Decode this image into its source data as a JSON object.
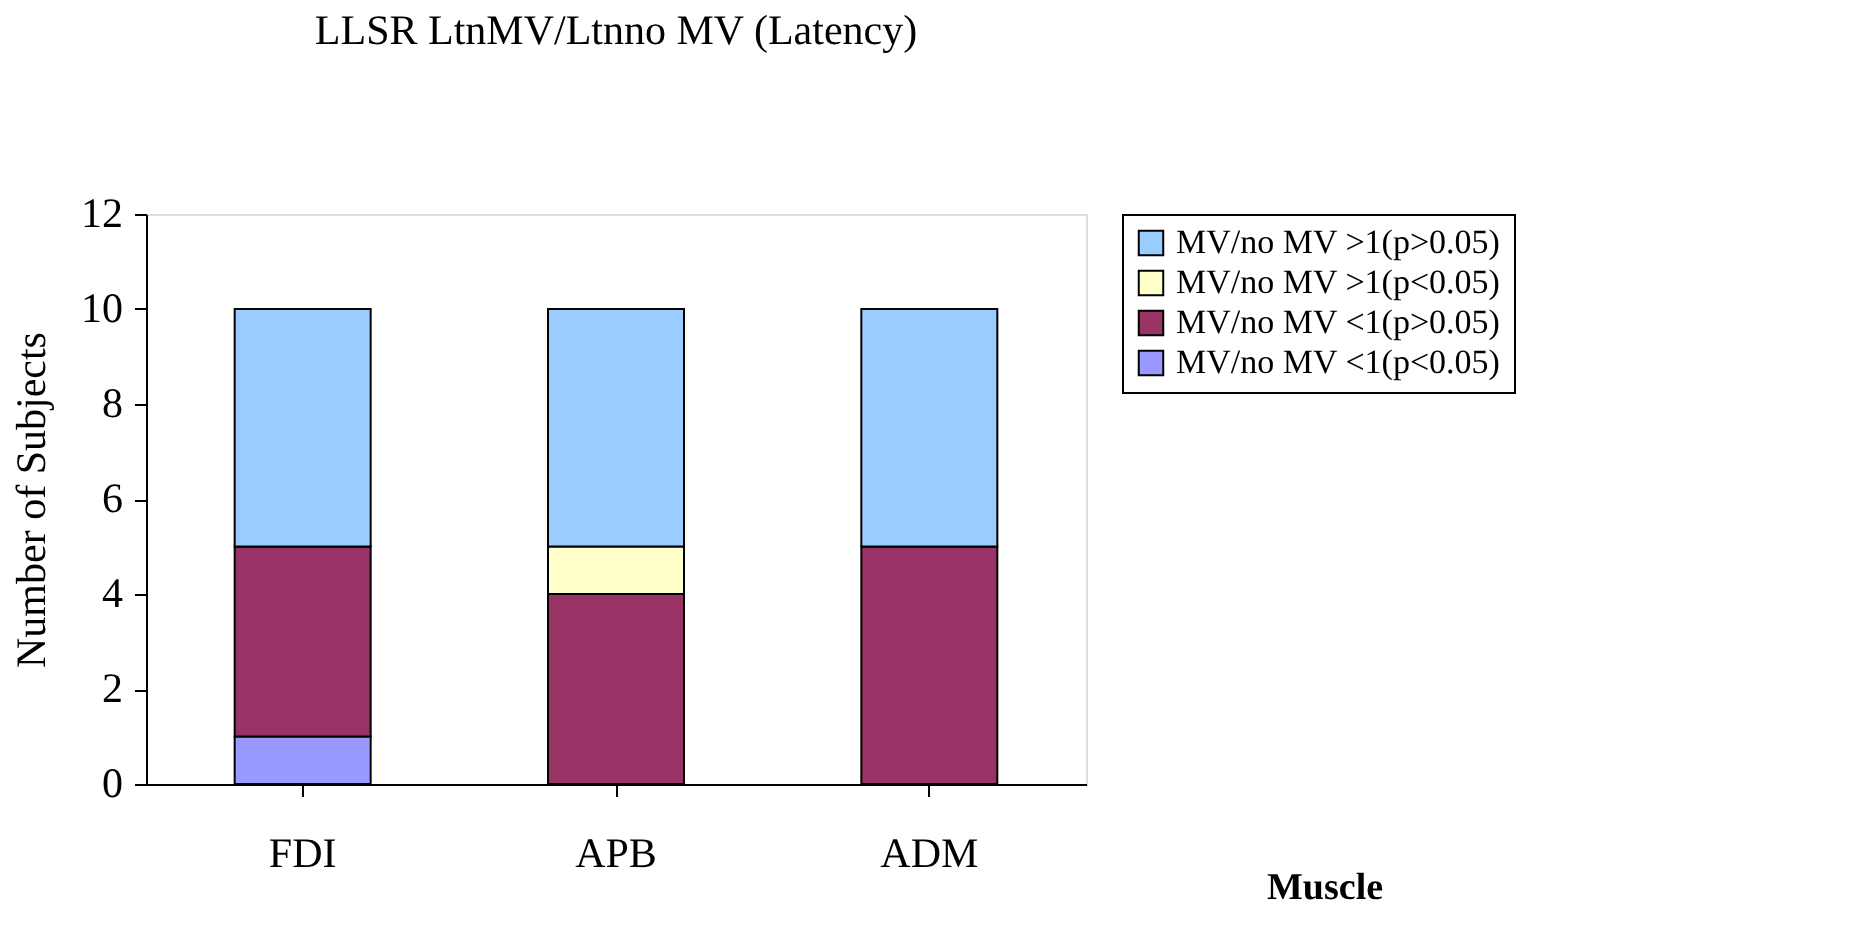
{
  "chart_data": {
    "type": "bar",
    "title": "LLSR LtnMV/Ltnno MV (Latency)",
    "xlabel": "Muscle",
    "ylabel": "Number of Subjects",
    "categories": [
      "FDI",
      "APB",
      "ADM"
    ],
    "stacked": true,
    "series": [
      {
        "name": "MV/no MV <1(p<0.05)",
        "color": "#9999ff",
        "values": [
          1,
          0,
          0
        ]
      },
      {
        "name": "MV/no MV <1(p>0.05)",
        "color": "#993366",
        "values": [
          4,
          4,
          5
        ]
      },
      {
        "name": "MV/no MV >1(p<0.05)",
        "color": "#ffffcc",
        "values": [
          0,
          1,
          0
        ]
      },
      {
        "name": "MV/no MV >1(p>0.05)",
        "color": "#99ccff",
        "values": [
          5,
          5,
          5
        ]
      }
    ],
    "ylim": [
      0,
      12
    ],
    "yticks": [
      0,
      2,
      4,
      6,
      8,
      10,
      12
    ],
    "grid": false,
    "legend": "right"
  }
}
